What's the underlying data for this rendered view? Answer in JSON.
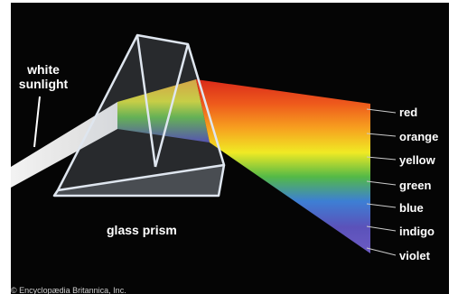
{
  "labels": {
    "light_line1": "white",
    "light_line2": "sunlight",
    "prism": "glass prism",
    "credit": "© Encyclopædia Britannica, Inc."
  },
  "spectrum": [
    {
      "name": "red",
      "color": "#e8321e"
    },
    {
      "name": "orange",
      "color": "#f37a1f"
    },
    {
      "name": "yellow",
      "color": "#f2e21c"
    },
    {
      "name": "green",
      "color": "#3fb54a"
    },
    {
      "name": "blue",
      "color": "#3a6fd0"
    },
    {
      "name": "indigo",
      "color": "#5a4fb8"
    },
    {
      "name": "violet",
      "color": "#6e5fc2"
    }
  ],
  "colors": {
    "background": "#050505",
    "prism_edge": "#cfd8e4",
    "beam": "#ffffff"
  }
}
